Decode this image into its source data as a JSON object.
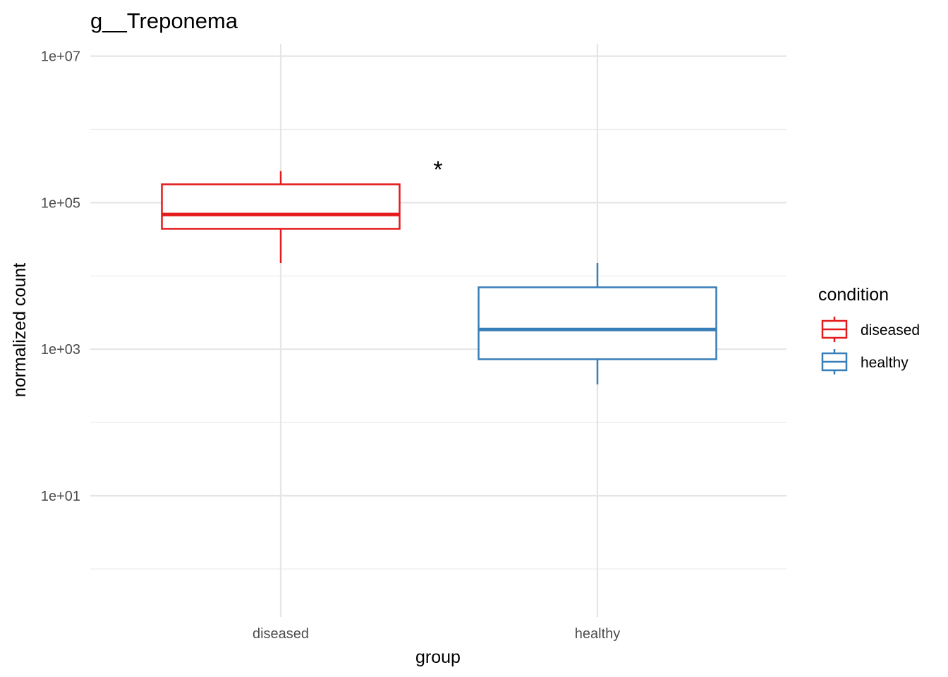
{
  "chart_data": {
    "type": "boxplot",
    "title": "g__Treponema",
    "xlabel": "group",
    "ylabel": "normalized count",
    "yscale": "log10",
    "ylim": [
      0.25,
      15000000.0
    ],
    "yticks": [
      10,
      1000,
      100000,
      10000000
    ],
    "ytick_labels": [
      "1e+01",
      "1e+03",
      "1e+05",
      "1e+07"
    ],
    "categories": [
      "diseased",
      "healthy"
    ],
    "grid": true,
    "legend": {
      "title": "condition",
      "position": "right",
      "entries": [
        "diseased",
        "healthy"
      ]
    },
    "series": [
      {
        "name": "diseased",
        "color": "#E41A1C",
        "whisker_low": 15000,
        "q1": 44000,
        "median": 69000,
        "q3": 178000,
        "whisker_high": 270000
      },
      {
        "name": "healthy",
        "color": "#377EB8",
        "whisker_low": 330,
        "q1": 730,
        "median": 1860,
        "q3": 7000,
        "whisker_high": 15000
      }
    ],
    "annotations": [
      {
        "text": "*",
        "between": [
          "diseased",
          "healthy"
        ],
        "y": 300000
      }
    ]
  }
}
